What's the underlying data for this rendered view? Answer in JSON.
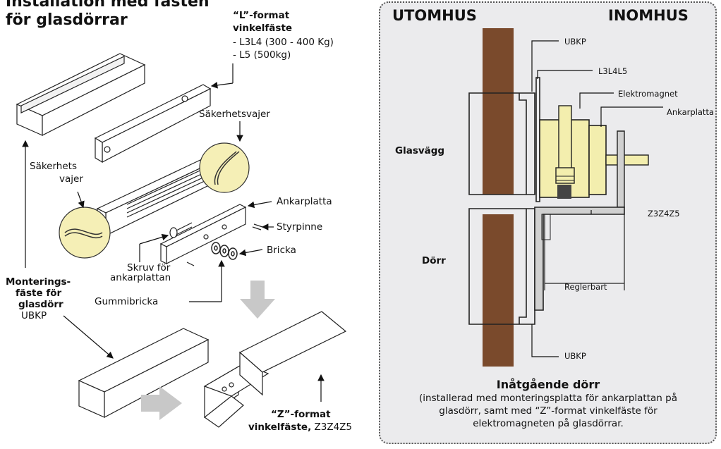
{
  "left": {
    "title_line1": "Installation med fästen",
    "title_line2": "för glasdörrar",
    "l_format_title1": "“L”-format",
    "l_format_title2": "vinkelfäste",
    "l_format_item1": "- L3L4 (300 - 400 Kg)",
    "l_format_item2": "- L5 (500kg)",
    "sakerhetsvajer": "Säkerhetsvajer",
    "sakerhets_line1": "Säkerhets",
    "sakerhets_line2": "vajer",
    "ankarplatta": "Ankarplatta",
    "styrpinne": "Styrpinne",
    "bricka": "Bricka",
    "skruv_line1": "Skruv för",
    "skruv_line2": "ankarplattan",
    "montering_line1": "Monterings-",
    "montering_line2": "fäste för",
    "montering_line3": "glasdörr",
    "montering_line4": "UBKP",
    "gummibricka": "Gummibricka",
    "z_format_line1": "“Z”-format",
    "z_format_line2": "vinkelfäste,",
    "z_format_model": "Z3Z4Z5"
  },
  "right": {
    "utomhus": "UTOMHUS",
    "inomhus": "INOMHUS",
    "ubkp_top": "UBKP",
    "l3l4l5": "L3L4L5",
    "elektromagnet": "Elektromagnet",
    "ankarplatta": "Ankarplatta",
    "glasvagg": "Glasvägg",
    "z3z4z5": "Z3Z4Z5",
    "dorr": "Dörr",
    "reglerbart": "Reglerbart",
    "ubkp_bottom": "UBKP",
    "caption_title": "Inåtgående dörr",
    "caption_line1": "(installerad med monteringsplatta för ankarplattan på",
    "caption_line2": "glasdörr, samt med “Z”-format vinkelfäste för",
    "caption_line3": "elektromagneten på glasdörrar."
  },
  "colors": {
    "wood": "#7a4a2c",
    "magnet": "#f3eeae",
    "panel_bg": "#ebebed",
    "arrow_gray": "#c8c8c8"
  }
}
